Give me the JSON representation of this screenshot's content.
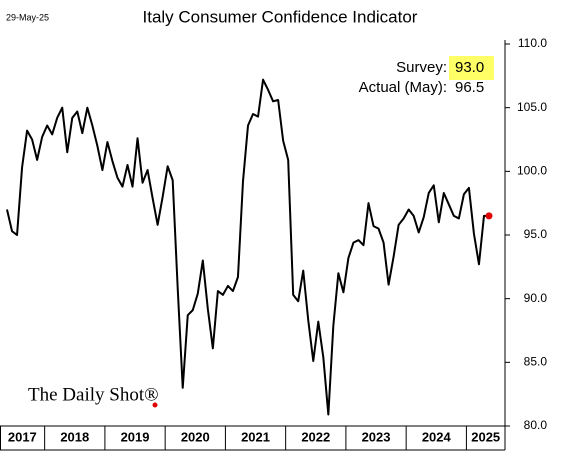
{
  "chart_data": {
    "type": "line",
    "title": "Italy Consumer Confidence Indicator",
    "date": "29-May-25",
    "source": "The Daily Shot®",
    "annotations": [
      {
        "label": "Survey:",
        "text": "93.0",
        "highlight": "#ffff66"
      },
      {
        "label": "Actual (May):",
        "text": "96.5"
      }
    ],
    "color": "#000000",
    "last_point_color": "#e00000",
    "x": [
      "2017",
      "2017",
      "2017",
      "2017",
      "2017",
      "2017",
      "2017",
      "2017",
      "2018",
      "2018",
      "2018",
      "2018",
      "2018",
      "2018",
      "2018",
      "2018",
      "2018",
      "2018",
      "2018",
      "2018",
      "2019",
      "2019",
      "2019",
      "2019",
      "2019",
      "2019",
      "2019",
      "2019",
      "2019",
      "2019",
      "2019",
      "2019",
      "2020",
      "2020",
      "2020",
      "2020",
      "2020",
      "2020",
      "2020",
      "2020",
      "2020",
      "2020",
      "2020",
      "2020",
      "2021",
      "2021",
      "2021",
      "2021",
      "2021",
      "2021",
      "2021",
      "2021",
      "2021",
      "2021",
      "2021",
      "2021",
      "2022",
      "2022",
      "2022",
      "2022",
      "2022",
      "2022",
      "2022",
      "2022",
      "2022",
      "2022",
      "2022",
      "2022",
      "2023",
      "2023",
      "2023",
      "2023",
      "2023",
      "2023",
      "2023",
      "2023",
      "2023",
      "2023",
      "2023",
      "2023",
      "2024",
      "2024",
      "2024",
      "2024",
      "2024",
      "2024",
      "2024",
      "2024",
      "2024",
      "2024",
      "2024",
      "2024",
      "2025",
      "2025",
      "2025",
      "2025",
      "2025"
    ],
    "values": [
      97.0,
      95.3,
      95.0,
      100.3,
      103.2,
      102.5,
      100.9,
      102.7,
      103.6,
      102.9,
      104.2,
      105.0,
      101.5,
      104.2,
      104.7,
      103.0,
      105.0,
      103.6,
      102.0,
      100.1,
      102.3,
      100.8,
      99.5,
      98.8,
      100.5,
      98.8,
      102.6,
      99.1,
      100.1,
      97.9,
      95.8,
      98.0,
      100.4,
      99.3,
      90.8,
      83.0,
      88.7,
      89.1,
      90.4,
      93.0,
      89.2,
      86.1,
      90.6,
      90.3,
      91.0,
      90.6,
      91.7,
      99.2,
      103.6,
      104.5,
      104.3,
      107.2,
      106.4,
      105.5,
      105.6,
      102.4,
      100.9,
      90.3,
      89.8,
      92.2,
      88.3,
      85.1,
      88.2,
      85.4,
      80.9,
      87.9,
      92.0,
      90.5,
      93.2,
      94.4,
      94.6,
      94.2,
      97.5,
      95.7,
      95.5,
      94.4,
      91.1,
      93.3,
      95.8,
      96.3,
      97.0,
      96.5,
      95.2,
      96.4,
      98.3,
      98.9,
      96.0,
      98.3,
      97.4,
      96.5,
      96.3,
      98.2,
      98.7,
      95.1,
      92.7,
      96.5,
      96.5
    ],
    "ylim": [
      80,
      110
    ],
    "yticks": [
      {
        "value": 80,
        "label": "80.0"
      },
      {
        "value": 85,
        "label": "85.0"
      },
      {
        "value": 90,
        "label": "90.0"
      },
      {
        "value": 95,
        "label": "95.0"
      },
      {
        "value": 100,
        "label": "100.0"
      },
      {
        "value": 105,
        "label": "105.0"
      },
      {
        "value": 110,
        "label": "110.0"
      }
    ],
    "grid": false
  }
}
